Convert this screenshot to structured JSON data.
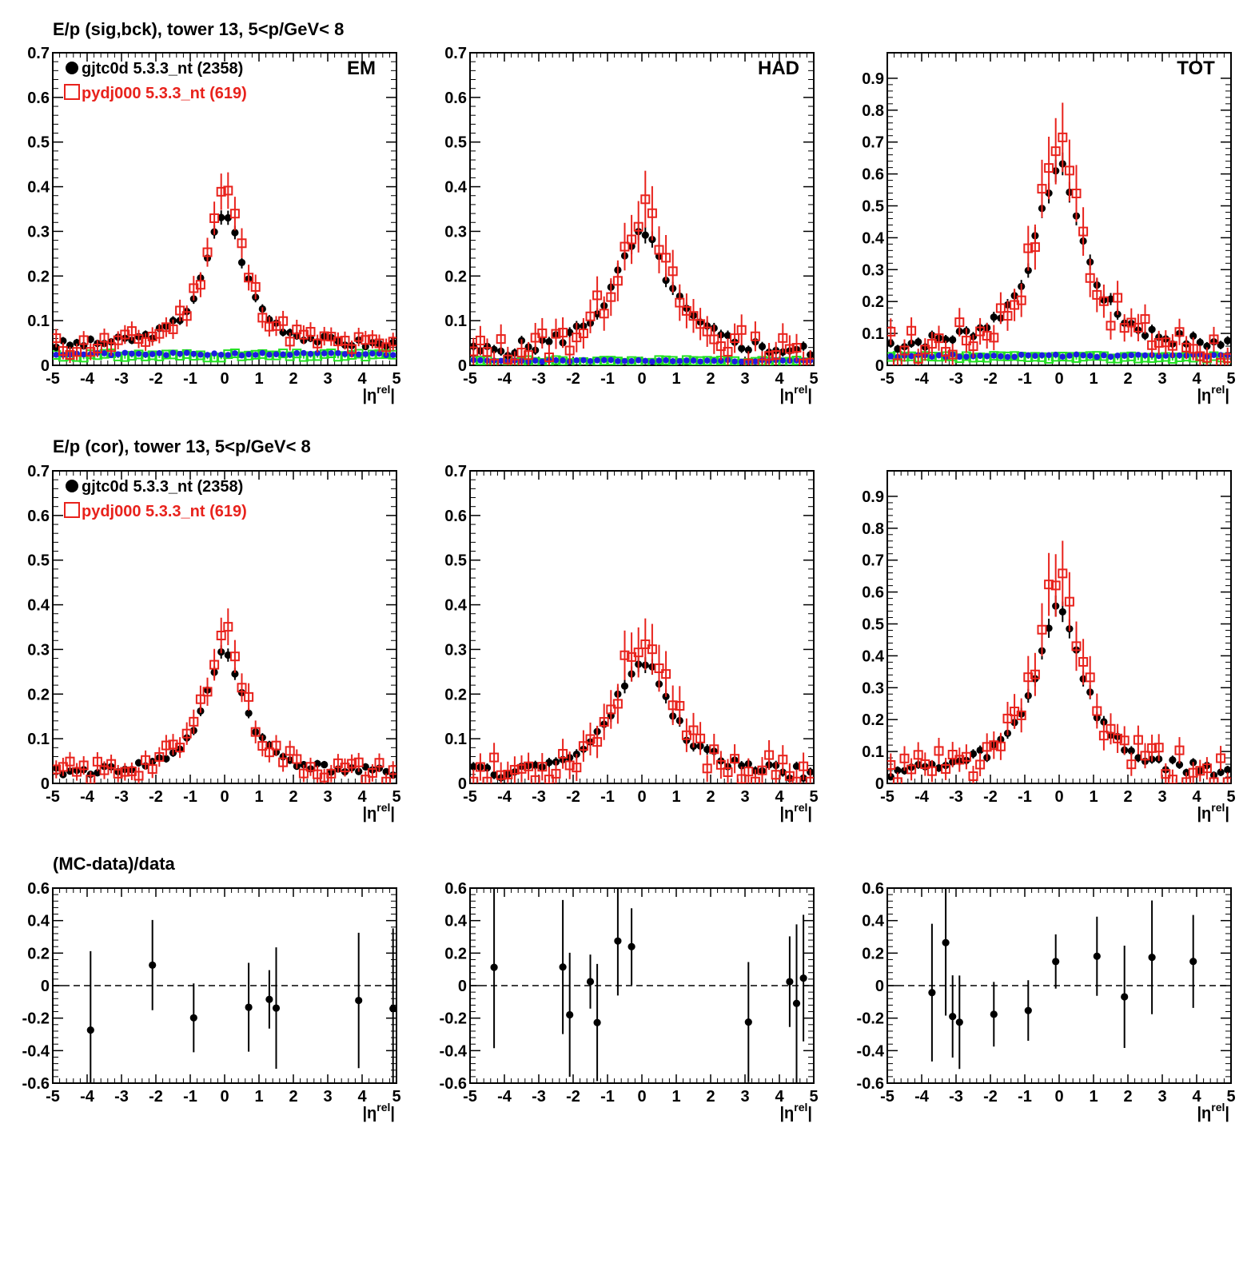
{
  "row_titles": [
    "E/p (sig,bck), tower 13,  5<p/GeV< 8",
    "E/p (cor), tower 13,  5<p/GeV< 8",
    "(MC-data)/data"
  ],
  "legend": {
    "data_label": "gjtc0d 5.3.3_nt (2358)",
    "mc_label": "pydj000 5.3.3_nt (619)"
  },
  "axis_label_x": "|η",
  "axis_label_x_sup": "rel",
  "axis_label_x_close": "|",
  "colors": {
    "data": "#000000",
    "mc": "#e8221c",
    "bck_data": "#1d1be0",
    "bck_mc": "#22e022",
    "axis": "#000000"
  },
  "chart_data": [
    {
      "type": "scatter",
      "title": "EM",
      "row": 0,
      "col": 0,
      "xlim": [
        -5,
        5
      ],
      "ylim": [
        0,
        0.7
      ],
      "yticks": [
        "0",
        "0.1",
        "0.2",
        "0.3",
        "0.4",
        "0.5",
        "0.6",
        "0.7"
      ],
      "yticks_v": [
        0,
        0.1,
        0.2,
        0.3,
        0.4,
        0.5,
        0.6,
        0.7
      ],
      "legend": true,
      "series": [
        {
          "name": "gjtc0d 5.3.3_nt (2358)",
          "style": "data",
          "peak": 0.3,
          "wdt": 0.66,
          "base": 0.04,
          "err": 0.012,
          "noise": 0.012,
          "seed": 3
        },
        {
          "name": "pydj000 5.3.3_nt (619)",
          "style": "mc",
          "peak": 0.36,
          "wdt": 0.62,
          "base": 0.035,
          "err": 0.028,
          "noise": 0.028,
          "seed": 11
        },
        {
          "style": "bck_data",
          "peak": 0.0,
          "wdt": 1,
          "base": 0.025,
          "err": 0.0,
          "noise": 0.006,
          "seed": 21
        },
        {
          "style": "bck_mc",
          "peak": 0.0,
          "wdt": 1,
          "base": 0.022,
          "err": 0.006,
          "noise": 0.01,
          "seed": 31
        }
      ]
    },
    {
      "type": "scatter",
      "title": "HAD",
      "row": 0,
      "col": 1,
      "xlim": [
        -5,
        5
      ],
      "ylim": [
        0,
        0.7
      ],
      "yticks": [
        "0",
        "0.1",
        "0.2",
        "0.3",
        "0.4",
        "0.5",
        "0.6",
        "0.7"
      ],
      "yticks_v": [
        0,
        0.1,
        0.2,
        0.3,
        0.4,
        0.5,
        0.6,
        0.7
      ],
      "legend": false,
      "series": [
        {
          "name": "gjtc0d 5.3.3_nt (2358)",
          "style": "data",
          "peak": 0.27,
          "wdt": 0.95,
          "base": 0.02,
          "err": 0.015,
          "noise": 0.02,
          "seed": 5
        },
        {
          "name": "pydj000 5.3.3_nt (619)",
          "style": "mc",
          "peak": 0.33,
          "wdt": 0.85,
          "base": 0.015,
          "err": 0.045,
          "noise": 0.045,
          "seed": 13
        },
        {
          "style": "bck_data",
          "peak": 0.0,
          "wdt": 1,
          "base": 0.01,
          "err": 0.0,
          "noise": 0.004,
          "seed": 23
        },
        {
          "style": "bck_mc",
          "peak": 0.0,
          "wdt": 1,
          "base": 0.008,
          "err": 0.006,
          "noise": 0.008,
          "seed": 33
        }
      ]
    },
    {
      "type": "scatter",
      "title": "TOT",
      "row": 0,
      "col": 2,
      "xlim": [
        -5,
        5
      ],
      "ylim": [
        0,
        0.98
      ],
      "yticks": [
        "0",
        "0.1",
        "0.2",
        "0.3",
        "0.4",
        "0.5",
        "0.6",
        "0.7",
        "0.8",
        "0.9"
      ],
      "yticks_v": [
        0,
        0.1,
        0.2,
        0.3,
        0.4,
        0.5,
        0.6,
        0.7,
        0.8,
        0.9
      ],
      "legend": false,
      "series": [
        {
          "name": "gjtc0d 5.3.3_nt (2358)",
          "style": "data",
          "peak": 0.57,
          "wdt": 0.8,
          "base": 0.05,
          "err": 0.018,
          "noise": 0.02,
          "seed": 7
        },
        {
          "name": "pydj000 5.3.3_nt (619)",
          "style": "mc",
          "peak": 0.68,
          "wdt": 0.72,
          "base": 0.04,
          "err": 0.05,
          "noise": 0.05,
          "seed": 17
        },
        {
          "style": "bck_data",
          "peak": 0.0,
          "wdt": 1,
          "base": 0.03,
          "err": 0.0,
          "noise": 0.008,
          "seed": 27
        },
        {
          "style": "bck_mc",
          "peak": 0.0,
          "wdt": 1,
          "base": 0.025,
          "err": 0.008,
          "noise": 0.01,
          "seed": 37
        }
      ]
    },
    {
      "type": "scatter",
      "title": "",
      "row": 1,
      "col": 0,
      "xlim": [
        -5,
        5
      ],
      "ylim": [
        0,
        0.7
      ],
      "yticks": [
        "0",
        "0.1",
        "0.2",
        "0.3",
        "0.4",
        "0.5",
        "0.6",
        "0.7"
      ],
      "yticks_v": [
        0,
        0.1,
        0.2,
        0.3,
        0.4,
        0.5,
        0.6,
        0.7
      ],
      "legend": true,
      "series": [
        {
          "name": "gjtc0d 5.3.3_nt (2358)",
          "style": "data",
          "peak": 0.275,
          "wdt": 0.66,
          "base": 0.02,
          "err": 0.012,
          "noise": 0.012,
          "seed": 41
        },
        {
          "name": "pydj000 5.3.3_nt (619)",
          "style": "mc",
          "peak": 0.33,
          "wdt": 0.62,
          "base": 0.018,
          "err": 0.03,
          "noise": 0.03,
          "seed": 43
        }
      ]
    },
    {
      "type": "scatter",
      "title": "",
      "row": 1,
      "col": 1,
      "xlim": [
        -5,
        5
      ],
      "ylim": [
        0,
        0.7
      ],
      "yticks": [
        "0",
        "0.1",
        "0.2",
        "0.3",
        "0.4",
        "0.5",
        "0.6",
        "0.7"
      ],
      "yticks_v": [
        0,
        0.1,
        0.2,
        0.3,
        0.4,
        0.5,
        0.6,
        0.7
      ],
      "legend": false,
      "series": [
        {
          "name": "gjtc0d 5.3.3_nt (2358)",
          "style": "data",
          "peak": 0.26,
          "wdt": 0.95,
          "base": 0.012,
          "err": 0.015,
          "noise": 0.02,
          "seed": 47
        },
        {
          "name": "pydj000 5.3.3_nt (619)",
          "style": "mc",
          "peak": 0.32,
          "wdt": 0.85,
          "base": 0.01,
          "err": 0.045,
          "noise": 0.045,
          "seed": 53
        }
      ]
    },
    {
      "type": "scatter",
      "title": "",
      "row": 1,
      "col": 2,
      "xlim": [
        -5,
        5
      ],
      "ylim": [
        0,
        0.98
      ],
      "yticks": [
        "0",
        "0.1",
        "0.2",
        "0.3",
        "0.4",
        "0.5",
        "0.6",
        "0.7",
        "0.8",
        "0.9"
      ],
      "yticks_v": [
        0,
        0.1,
        0.2,
        0.3,
        0.4,
        0.5,
        0.6,
        0.7,
        0.8,
        0.9
      ],
      "legend": false,
      "series": [
        {
          "name": "gjtc0d 5.3.3_nt (2358)",
          "style": "data",
          "peak": 0.53,
          "wdt": 0.8,
          "base": 0.025,
          "err": 0.018,
          "noise": 0.02,
          "seed": 59
        },
        {
          "name": "pydj000 5.3.3_nt (619)",
          "style": "mc",
          "peak": 0.64,
          "wdt": 0.72,
          "base": 0.02,
          "err": 0.05,
          "noise": 0.05,
          "seed": 61
        }
      ]
    },
    {
      "type": "scatter",
      "title": "",
      "row": 2,
      "col": 0,
      "ratio": true,
      "xlim": [
        -5,
        5
      ],
      "ylim": [
        -0.6,
        0.6
      ],
      "yticks": [
        "-0.6",
        "-0.4",
        "-0.2",
        "0",
        "0.2",
        "0.4",
        "0.6"
      ],
      "yticks_v": [
        -0.6,
        -0.4,
        -0.2,
        0,
        0.2,
        0.4,
        0.6
      ],
      "legend": false,
      "series": [
        {
          "name": "(MC-data)/data",
          "style": "data",
          "seed": 71,
          "amp": 0.22
        }
      ]
    },
    {
      "type": "scatter",
      "title": "",
      "row": 2,
      "col": 1,
      "ratio": true,
      "xlim": [
        -5,
        5
      ],
      "ylim": [
        -0.6,
        0.6
      ],
      "yticks": [
        "-0.6",
        "-0.4",
        "-0.2",
        "0",
        "0.2",
        "0.4",
        "0.6"
      ],
      "yticks_v": [
        -0.6,
        -0.4,
        -0.2,
        0,
        0.2,
        0.4,
        0.6
      ],
      "legend": false,
      "series": [
        {
          "name": "(MC-data)/data",
          "style": "data",
          "seed": 73,
          "amp": 0.22
        }
      ]
    },
    {
      "type": "scatter",
      "title": "",
      "row": 2,
      "col": 2,
      "ratio": true,
      "xlim": [
        -5,
        5
      ],
      "ylim": [
        -0.6,
        0.6
      ],
      "yticks": [
        "-0.6",
        "-0.4",
        "-0.2",
        "0",
        "0.2",
        "0.4",
        "0.6"
      ],
      "yticks_v": [
        -0.6,
        -0.4,
        -0.2,
        0,
        0.2,
        0.4,
        0.6
      ],
      "legend": false,
      "series": [
        {
          "name": "(MC-data)/data",
          "style": "data",
          "seed": 79,
          "amp": 0.2
        }
      ]
    }
  ]
}
